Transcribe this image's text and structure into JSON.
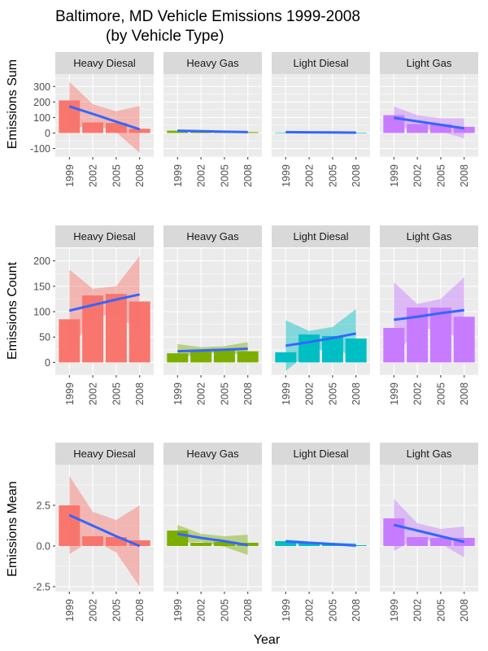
{
  "title_line1": "Baltimore, MD Vehicle Emissions 1999-2008",
  "title_line2": "(by Vehicle Type)",
  "xlabel": "Year",
  "colors": {
    "Heavy Diesal": "#f8766d",
    "Heavy Gas": "#7cae00",
    "Light Diesal": "#00bfc4",
    "Light Gas": "#c77cff",
    "trend": "#3366ff"
  },
  "chart_data": {
    "type": "bar",
    "facets": [
      "Heavy Diesal",
      "Heavy Gas",
      "Light Diesal",
      "Light Gas"
    ],
    "x": [
      "1999",
      "2002",
      "2005",
      "2008"
    ],
    "rows": [
      {
        "ylabel": "Emissions Sum",
        "ylim": [
          -155,
          380
        ],
        "yticks": [
          -100,
          0,
          100,
          200,
          300
        ],
        "ytick_labels": [
          "-100",
          "0",
          "100",
          "200",
          "300"
        ],
        "series": [
          {
            "name": "Heavy Diesal",
            "values": [
              210,
              68,
              65,
              27
            ],
            "trend": [
              172,
              123,
              73,
              24
            ],
            "band_lo": [
              15,
              60,
              5,
              -128
            ],
            "band_hi": [
              330,
              186,
              140,
              175
            ]
          },
          {
            "name": "Heavy Gas",
            "values": [
              15,
              12,
              10,
              6
            ],
            "trend": [
              14.5,
              11.5,
              8.5,
              5.5
            ],
            "band_lo": [
              11,
              9,
              6,
              1
            ],
            "band_hi": [
              18,
              14,
              11,
              10
            ]
          },
          {
            "name": "Light Diesal",
            "values": [
              3,
              5,
              3,
              2
            ],
            "trend": [
              5.5,
              4.5,
              3.5,
              2.5
            ],
            "band_lo": [
              4,
              3.5,
              2.5,
              1
            ],
            "band_hi": [
              7,
              5.5,
              4.5,
              4
            ]
          },
          {
            "name": "Light Gas",
            "values": [
              115,
              58,
              56,
              40
            ],
            "trend": [
              98,
              75,
              53,
              30
            ],
            "band_lo": [
              25,
              35,
              10,
              -35
            ],
            "band_hi": [
              170,
              115,
              95,
              95
            ]
          }
        ]
      },
      {
        "ylabel": "Emissions Count",
        "ylim": [
          -25,
          225
        ],
        "yticks": [
          0,
          50,
          100,
          150,
          200
        ],
        "ytick_labels": [
          "0",
          "50",
          "100",
          "150",
          "200"
        ],
        "series": [
          {
            "name": "Heavy Diesal",
            "values": [
              85,
              132,
              135,
              120
            ],
            "trend": [
              102,
              113,
              124,
              134
            ],
            "band_lo": [
              20,
              90,
              95,
              60
            ],
            "band_hi": [
              183,
              145,
              150,
              210
            ]
          },
          {
            "name": "Heavy Gas",
            "values": [
              18,
              22,
              24,
              22
            ],
            "trend": [
              22,
              23.5,
              25,
              27
            ],
            "band_lo": [
              8,
              18,
              19,
              15
            ],
            "band_hi": [
              36,
              30,
              32,
              40
            ]
          },
          {
            "name": "Light Diesal",
            "values": [
              20,
              55,
              52,
              47
            ],
            "trend": [
              33,
              40,
              48,
              57
            ],
            "band_lo": [
              -17,
              20,
              28,
              10
            ],
            "band_hi": [
              83,
              62,
              70,
              105
            ]
          },
          {
            "name": "Light Gas",
            "values": [
              68,
              108,
              108,
              90
            ],
            "trend": [
              84,
              90,
              97,
              103
            ],
            "band_lo": [
              10,
              65,
              68,
              40
            ],
            "band_hi": [
              158,
              115,
              125,
              168
            ]
          }
        ]
      },
      {
        "ylabel": "Emissions Mean",
        "ylim": [
          -2.8,
          5.0
        ],
        "yticks": [
          -2.5,
          0,
          2.5
        ],
        "ytick_labels": [
          "-2.5",
          "0.0",
          "2.5"
        ],
        "series": [
          {
            "name": "Heavy Diesal",
            "values": [
              2.5,
              0.6,
              0.55,
              0.35
            ],
            "trend": [
              1.9,
              1.25,
              0.6,
              0.0
            ],
            "band_lo": [
              -0.5,
              0.4,
              -0.4,
              -2.5
            ],
            "band_hi": [
              4.3,
              2.1,
              1.6,
              2.5
            ]
          },
          {
            "name": "Heavy Gas",
            "values": [
              0.95,
              0.2,
              0.25,
              0.2
            ],
            "trend": [
              0.75,
              0.5,
              0.3,
              0.05
            ],
            "band_lo": [
              0.2,
              0.25,
              -0.05,
              -0.55
            ],
            "band_hi": [
              1.3,
              0.75,
              0.6,
              0.7
            ]
          },
          {
            "name": "Light Diesal",
            "values": [
              0.3,
              0.2,
              0.15,
              0.05
            ],
            "trend": [
              0.28,
              0.2,
              0.12,
              0.04
            ],
            "band_lo": [
              0.15,
              0.12,
              0.04,
              -0.08
            ],
            "band_hi": [
              0.41,
              0.28,
              0.2,
              0.16
            ]
          },
          {
            "name": "Light Gas",
            "values": [
              1.7,
              0.55,
              0.5,
              0.5
            ],
            "trend": [
              1.3,
              0.95,
              0.6,
              0.25
            ],
            "band_lo": [
              -0.3,
              0.5,
              0.15,
              -0.7
            ],
            "band_hi": [
              2.9,
              1.4,
              1.05,
              1.2
            ]
          }
        ]
      }
    ]
  }
}
